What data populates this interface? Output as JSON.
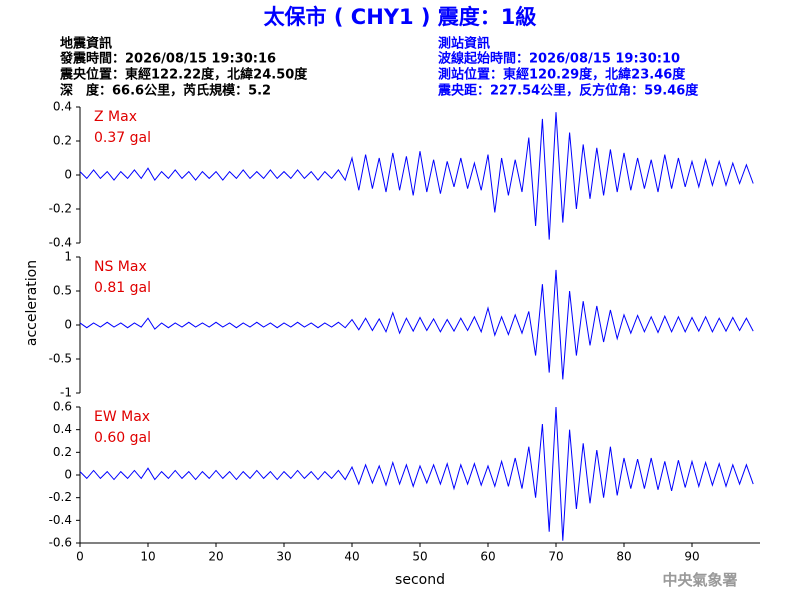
{
  "title": "太保市 ( CHY1 ) 震度：1級",
  "event_info": [
    "地震資訊",
    "發震時間：2026/08/15 19:30:16",
    "震央位置：東經122.22度，北緯24.50度",
    "深　度：66.6公里，芮氏規模：5.2"
  ],
  "station_info": [
    "測站資訊",
    "波線起始時間：2026/08/15 19:30:10",
    "測站位置：東經120.29度，北緯23.46度",
    "震央距：227.54公里，反方位角：59.46度"
  ],
  "ylabel": "acceleration",
  "footer": "中央氣象署",
  "chart_data": [
    {
      "type": "line",
      "annotation": [
        "Z Max",
        "0.37 gal"
      ],
      "color": "#0000ff",
      "xlim": [
        0,
        100
      ],
      "ylim": [
        -0.4,
        0.4
      ],
      "yticks": [
        -0.4,
        -0.2,
        0,
        0.2,
        0.4
      ],
      "x": [
        0,
        1,
        2,
        3,
        4,
        5,
        6,
        7,
        8,
        9,
        10,
        11,
        12,
        13,
        14,
        15,
        16,
        17,
        18,
        19,
        20,
        21,
        22,
        23,
        24,
        25,
        26,
        27,
        28,
        29,
        30,
        31,
        32,
        33,
        34,
        35,
        36,
        37,
        38,
        39,
        40,
        41,
        42,
        43,
        44,
        45,
        46,
        47,
        48,
        49,
        50,
        51,
        52,
        53,
        54,
        55,
        56,
        57,
        58,
        59,
        60,
        61,
        62,
        63,
        64,
        65,
        66,
        67,
        68,
        69,
        70,
        71,
        72,
        73,
        74,
        75,
        76,
        77,
        78,
        79,
        80,
        81,
        82,
        83,
        84,
        85,
        86,
        87,
        88,
        89,
        90,
        91,
        92,
        93,
        94,
        95,
        96,
        97,
        98,
        99
      ],
      "values": [
        0.02,
        -0.02,
        0.03,
        -0.02,
        0.02,
        -0.03,
        0.02,
        -0.02,
        0.03,
        -0.02,
        0.04,
        -0.03,
        0.02,
        -0.02,
        0.03,
        -0.02,
        0.02,
        -0.03,
        0.02,
        -0.02,
        0.02,
        -0.03,
        0.02,
        -0.02,
        0.03,
        -0.02,
        0.02,
        -0.02,
        0.03,
        -0.02,
        0.02,
        -0.02,
        0.03,
        -0.02,
        0.02,
        -0.03,
        0.02,
        -0.02,
        0.03,
        -0.03,
        0.1,
        -0.09,
        0.12,
        -0.08,
        0.1,
        -0.1,
        0.13,
        -0.09,
        0.11,
        -0.12,
        0.14,
        -0.1,
        0.09,
        -0.11,
        0.08,
        -0.07,
        0.1,
        -0.08,
        0.07,
        -0.09,
        0.12,
        -0.22,
        0.1,
        -0.12,
        0.09,
        -0.1,
        0.22,
        -0.3,
        0.33,
        -0.38,
        0.37,
        -0.28,
        0.25,
        -0.2,
        0.18,
        -0.14,
        0.16,
        -0.12,
        0.15,
        -0.1,
        0.13,
        -0.09,
        0.1,
        -0.08,
        0.09,
        -0.1,
        0.12,
        -0.08,
        0.1,
        -0.07,
        0.08,
        -0.07,
        0.09,
        -0.06,
        0.08,
        -0.06,
        0.07,
        -0.05,
        0.06,
        -0.05
      ]
    },
    {
      "type": "line",
      "annotation": [
        "NS Max",
        "0.81 gal"
      ],
      "color": "#0000ff",
      "xlim": [
        0,
        100
      ],
      "ylim": [
        -1,
        1
      ],
      "yticks": [
        -1,
        -0.5,
        0,
        0.5,
        1
      ],
      "x": [
        0,
        1,
        2,
        3,
        4,
        5,
        6,
        7,
        8,
        9,
        10,
        11,
        12,
        13,
        14,
        15,
        16,
        17,
        18,
        19,
        20,
        21,
        22,
        23,
        24,
        25,
        26,
        27,
        28,
        29,
        30,
        31,
        32,
        33,
        34,
        35,
        36,
        37,
        38,
        39,
        40,
        41,
        42,
        43,
        44,
        45,
        46,
        47,
        48,
        49,
        50,
        51,
        52,
        53,
        54,
        55,
        56,
        57,
        58,
        59,
        60,
        61,
        62,
        63,
        64,
        65,
        66,
        67,
        68,
        69,
        70,
        71,
        72,
        73,
        74,
        75,
        76,
        77,
        78,
        79,
        80,
        81,
        82,
        83,
        84,
        85,
        86,
        87,
        88,
        89,
        90,
        91,
        92,
        93,
        94,
        95,
        96,
        97,
        98,
        99
      ],
      "values": [
        0.03,
        -0.04,
        0.03,
        -0.03,
        0.04,
        -0.03,
        0.03,
        -0.04,
        0.03,
        -0.03,
        0.1,
        -0.06,
        0.03,
        -0.04,
        0.03,
        -0.03,
        0.04,
        -0.03,
        0.03,
        -0.03,
        0.04,
        -0.03,
        0.03,
        -0.04,
        0.03,
        -0.03,
        0.04,
        -0.03,
        0.03,
        -0.04,
        0.03,
        -0.03,
        0.04,
        -0.03,
        0.03,
        -0.04,
        0.03,
        -0.03,
        0.04,
        -0.04,
        0.08,
        -0.07,
        0.1,
        -0.08,
        0.09,
        -0.1,
        0.18,
        -0.12,
        0.1,
        -0.09,
        0.11,
        -0.08,
        0.09,
        -0.1,
        0.08,
        -0.09,
        0.1,
        -0.08,
        0.12,
        -0.1,
        0.25,
        -0.15,
        0.12,
        -0.14,
        0.15,
        -0.12,
        0.2,
        -0.45,
        0.6,
        -0.7,
        0.81,
        -0.8,
        0.5,
        -0.45,
        0.35,
        -0.3,
        0.28,
        -0.25,
        0.22,
        -0.2,
        0.15,
        -0.12,
        0.14,
        -0.1,
        0.12,
        -0.11,
        0.13,
        -0.1,
        0.12,
        -0.1,
        0.11,
        -0.09,
        0.12,
        -0.1,
        0.1,
        -0.09,
        0.11,
        -0.08,
        0.1,
        -0.09
      ]
    },
    {
      "type": "line",
      "annotation": [
        "EW Max",
        "0.60 gal"
      ],
      "color": "#0000ff",
      "xlim": [
        0,
        100
      ],
      "ylim": [
        -0.6,
        0.6
      ],
      "yticks": [
        -0.6,
        -0.4,
        -0.2,
        0,
        0.2,
        0.4,
        0.6
      ],
      "xticks": [
        0,
        10,
        20,
        30,
        40,
        50,
        60,
        70,
        80,
        90
      ],
      "xlabel": "second",
      "x": [
        0,
        1,
        2,
        3,
        4,
        5,
        6,
        7,
        8,
        9,
        10,
        11,
        12,
        13,
        14,
        15,
        16,
        17,
        18,
        19,
        20,
        21,
        22,
        23,
        24,
        25,
        26,
        27,
        28,
        29,
        30,
        31,
        32,
        33,
        34,
        35,
        36,
        37,
        38,
        39,
        40,
        41,
        42,
        43,
        44,
        45,
        46,
        47,
        48,
        49,
        50,
        51,
        52,
        53,
        54,
        55,
        56,
        57,
        58,
        59,
        60,
        61,
        62,
        63,
        64,
        65,
        66,
        67,
        68,
        69,
        70,
        71,
        72,
        73,
        74,
        75,
        76,
        77,
        78,
        79,
        80,
        81,
        82,
        83,
        84,
        85,
        86,
        87,
        88,
        89,
        90,
        91,
        92,
        93,
        94,
        95,
        96,
        97,
        98,
        99
      ],
      "values": [
        0.03,
        -0.03,
        0.04,
        -0.03,
        0.03,
        -0.04,
        0.03,
        -0.03,
        0.04,
        -0.03,
        0.06,
        -0.04,
        0.03,
        -0.03,
        0.04,
        -0.03,
        0.03,
        -0.04,
        0.03,
        -0.03,
        0.04,
        -0.03,
        0.03,
        -0.04,
        0.03,
        -0.03,
        0.04,
        -0.03,
        0.03,
        -0.04,
        0.03,
        -0.03,
        0.04,
        -0.03,
        0.03,
        -0.04,
        0.03,
        -0.03,
        0.04,
        -0.04,
        0.07,
        -0.08,
        0.09,
        -0.07,
        0.08,
        -0.09,
        0.11,
        -0.08,
        0.09,
        -0.1,
        0.08,
        -0.07,
        0.09,
        -0.08,
        0.1,
        -0.12,
        0.09,
        -0.08,
        0.1,
        -0.09,
        0.08,
        -0.1,
        0.12,
        -0.1,
        0.15,
        -0.12,
        0.25,
        -0.2,
        0.45,
        -0.5,
        0.6,
        -0.58,
        0.4,
        -0.3,
        0.28,
        -0.25,
        0.22,
        -0.2,
        0.25,
        -0.18,
        0.15,
        -0.12,
        0.14,
        -0.12,
        0.15,
        -0.13,
        0.12,
        -0.14,
        0.13,
        -0.11,
        0.12,
        -0.1,
        0.11,
        -0.09,
        0.1,
        -0.1,
        0.09,
        -0.08,
        0.09,
        -0.08
      ]
    }
  ]
}
